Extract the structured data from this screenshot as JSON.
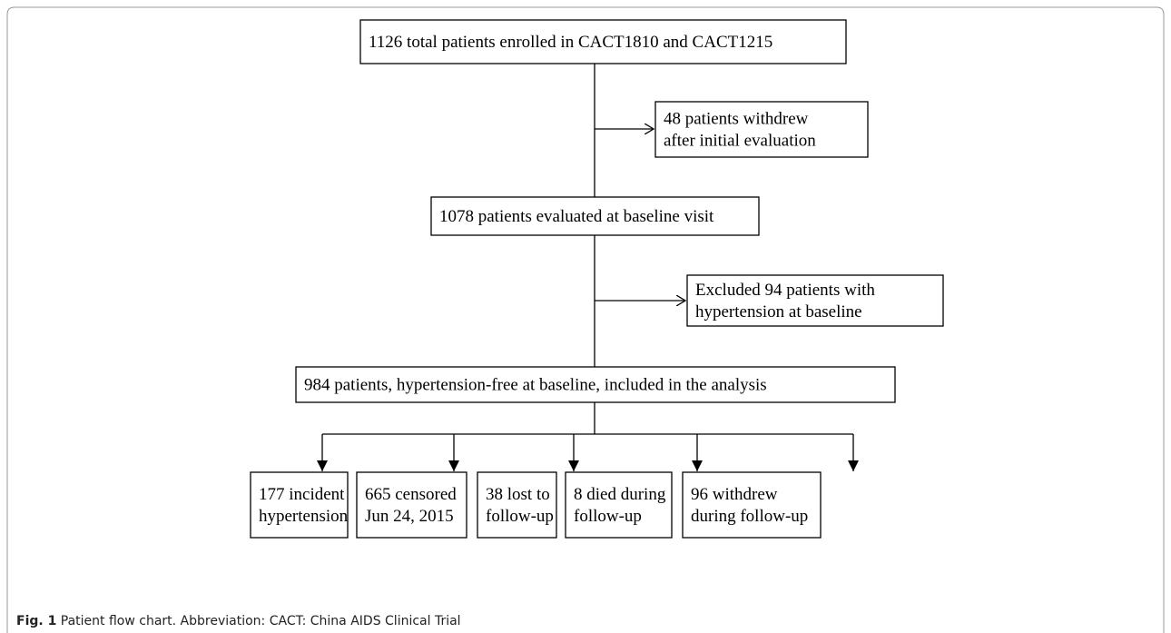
{
  "nodes": [
    {
      "lines": [
        "1126 total patients enrolled in CACT1810 and CACT1215"
      ]
    },
    {
      "lines": [
        "48 patients withdrew",
        "after initial evaluation"
      ]
    },
    {
      "lines": [
        "1078 patients evaluated at baseline visit"
      ]
    },
    {
      "lines": [
        "Excluded 94 patients with",
        "hypertension at baseline"
      ]
    },
    {
      "lines": [
        "984 patients, hypertension-free at baseline, included in the analysis"
      ]
    },
    {
      "lines": [
        "177 incident",
        "hypertension"
      ]
    },
    {
      "lines": [
        "665 censored",
        "Jun 24, 2015"
      ]
    },
    {
      "lines": [
        "38 lost to",
        "follow-up"
      ]
    },
    {
      "lines": [
        "8 died during",
        "follow-up"
      ]
    },
    {
      "lines": [
        "96 withdrew",
        "during follow-up"
      ]
    }
  ],
  "caption": {
    "label": "Fig. 1",
    "text": "Patient flow chart. Abbreviation: CACT: China AIDS Clinical Trial"
  }
}
